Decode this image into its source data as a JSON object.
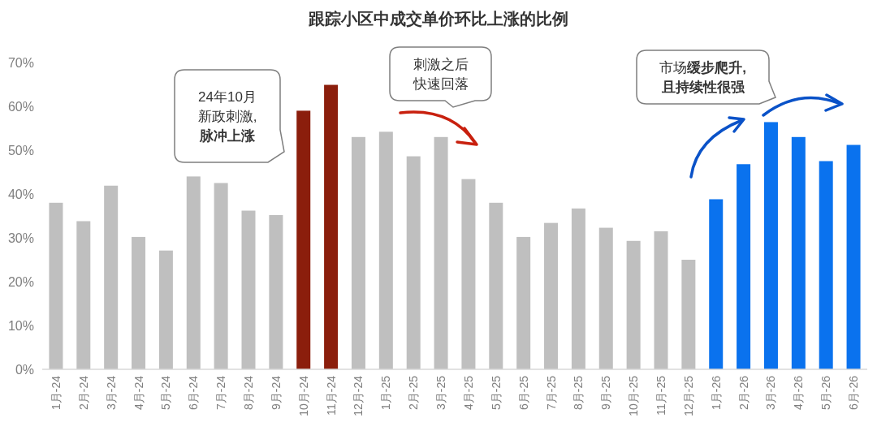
{
  "chart_data": {
    "type": "bar",
    "title": "跟踪小区中成交单价环比上涨的比例",
    "categories": [
      "1月-24",
      "2月-24",
      "3月-24",
      "4月-24",
      "5月-24",
      "6月-24",
      "7月-24",
      "8月-24",
      "9月-24",
      "10月-24",
      "11月-24",
      "12月-24",
      "1月-25",
      "2月-25",
      "3月-25",
      "4月-25",
      "5月-25",
      "6月-25",
      "7月-25",
      "8月-25",
      "9月-25",
      "10月-25",
      "11月-25",
      "12月-25",
      "1月-26",
      "2月-26",
      "3月-26",
      "4月-26",
      "5月-26",
      "6月-26"
    ],
    "values": [
      38,
      33.8,
      41.9,
      30.2,
      27.1,
      44,
      42.5,
      36.2,
      35.2,
      59,
      64.9,
      53,
      54.2,
      48.6,
      53,
      43.4,
      38,
      30.2,
      33.4,
      36.7,
      32.3,
      29.3,
      31.5,
      25,
      38.8,
      46.8,
      56.4,
      53,
      47.5,
      51.2
    ],
    "colors": [
      "#bfbfbf",
      "#bfbfbf",
      "#bfbfbf",
      "#bfbfbf",
      "#bfbfbf",
      "#bfbfbf",
      "#bfbfbf",
      "#bfbfbf",
      "#bfbfbf",
      "#8b1e0c",
      "#8b1e0c",
      "#bfbfbf",
      "#bfbfbf",
      "#bfbfbf",
      "#bfbfbf",
      "#bfbfbf",
      "#bfbfbf",
      "#bfbfbf",
      "#bfbfbf",
      "#bfbfbf",
      "#bfbfbf",
      "#bfbfbf",
      "#bfbfbf",
      "#bfbfbf",
      "#0a72ee",
      "#0a72ee",
      "#0a72ee",
      "#0a72ee",
      "#0a72ee",
      "#0a72ee"
    ],
    "ylim": [
      0,
      70
    ],
    "yticks": [
      {
        "value": 0,
        "label": "0%"
      },
      {
        "value": 10,
        "label": "10%"
      },
      {
        "value": 20,
        "label": "20%"
      },
      {
        "value": 30,
        "label": "30%"
      },
      {
        "value": 40,
        "label": "40%"
      },
      {
        "value": 50,
        "label": "50%"
      },
      {
        "value": 60,
        "label": "60%"
      },
      {
        "value": 70,
        "label": "70%"
      }
    ],
    "grid": false,
    "annotations": [
      "24年10月新政刺激,脉冲上涨",
      "刺激之后快速回落",
      "市场缓步爬升,且持续性很强"
    ]
  }
}
